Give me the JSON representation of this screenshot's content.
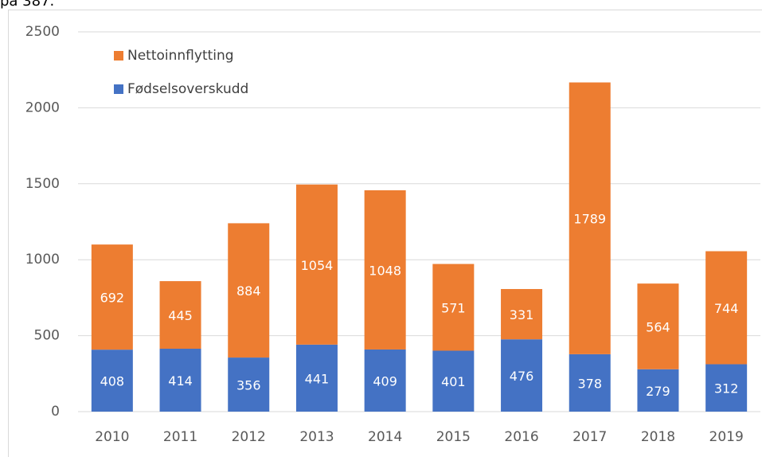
{
  "caption": "på 387.",
  "chart_data": {
    "type": "bar",
    "stacked": true,
    "categories": [
      "2010",
      "2011",
      "2012",
      "2013",
      "2014",
      "2015",
      "2016",
      "2017",
      "2018",
      "2019"
    ],
    "series": [
      {
        "name": "Fødselsoverskudd",
        "color": "#4472c4",
        "values": [
          408,
          414,
          356,
          441,
          409,
          401,
          476,
          378,
          279,
          312
        ]
      },
      {
        "name": "Nettoinnflytting",
        "color": "#ed7d31",
        "values": [
          692,
          445,
          884,
          1054,
          1048,
          571,
          331,
          1789,
          564,
          744
        ]
      }
    ],
    "ylim": [
      0,
      2500
    ],
    "yticks": [
      0,
      500,
      1000,
      1500,
      2000,
      2500
    ],
    "grid": true
  }
}
